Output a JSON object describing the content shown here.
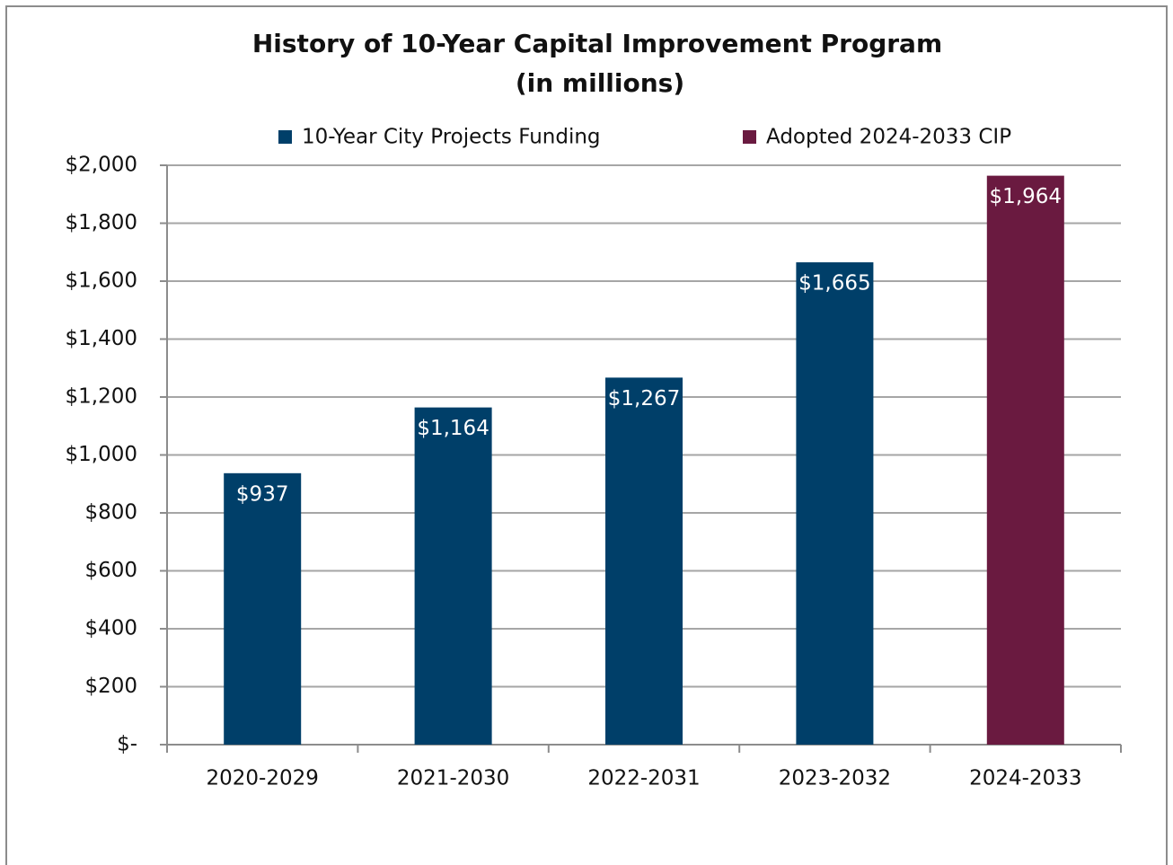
{
  "chart_data": {
    "type": "bar",
    "title": "History of 10-Year Capital Improvement Program",
    "subtitle": "(in millions)",
    "categories": [
      "2020-2029",
      "2021-2030",
      "2022-2031",
      "2023-2032",
      "2024-2033"
    ],
    "series": [
      {
        "name": "10-Year City Projects Funding",
        "color": "#003f69",
        "values": [
          937,
          1164,
          1267,
          1665,
          null
        ],
        "value_labels": [
          "$937",
          "$1,164",
          "$1,267",
          "$1,665",
          null
        ]
      },
      {
        "name": "Adopted 2024-2033 CIP",
        "color": "#6a1a40",
        "values": [
          null,
          null,
          null,
          null,
          1964
        ],
        "value_labels": [
          null,
          null,
          null,
          null,
          "$1,964"
        ]
      }
    ],
    "ylim": [
      0,
      2000
    ],
    "yticks": [
      {
        "value": 0,
        "label": "$-"
      },
      {
        "value": 200,
        "label": "$200"
      },
      {
        "value": 400,
        "label": "$400"
      },
      {
        "value": 600,
        "label": "$600"
      },
      {
        "value": 800,
        "label": "$800"
      },
      {
        "value": 1000,
        "label": "$1,000"
      },
      {
        "value": 1200,
        "label": "$1,200"
      },
      {
        "value": 1400,
        "label": "$1,400"
      },
      {
        "value": 1600,
        "label": "$1,600"
      },
      {
        "value": 1800,
        "label": "$1,800"
      },
      {
        "value": 2000,
        "label": "$2,000"
      }
    ],
    "grid": true,
    "legend": "top"
  }
}
